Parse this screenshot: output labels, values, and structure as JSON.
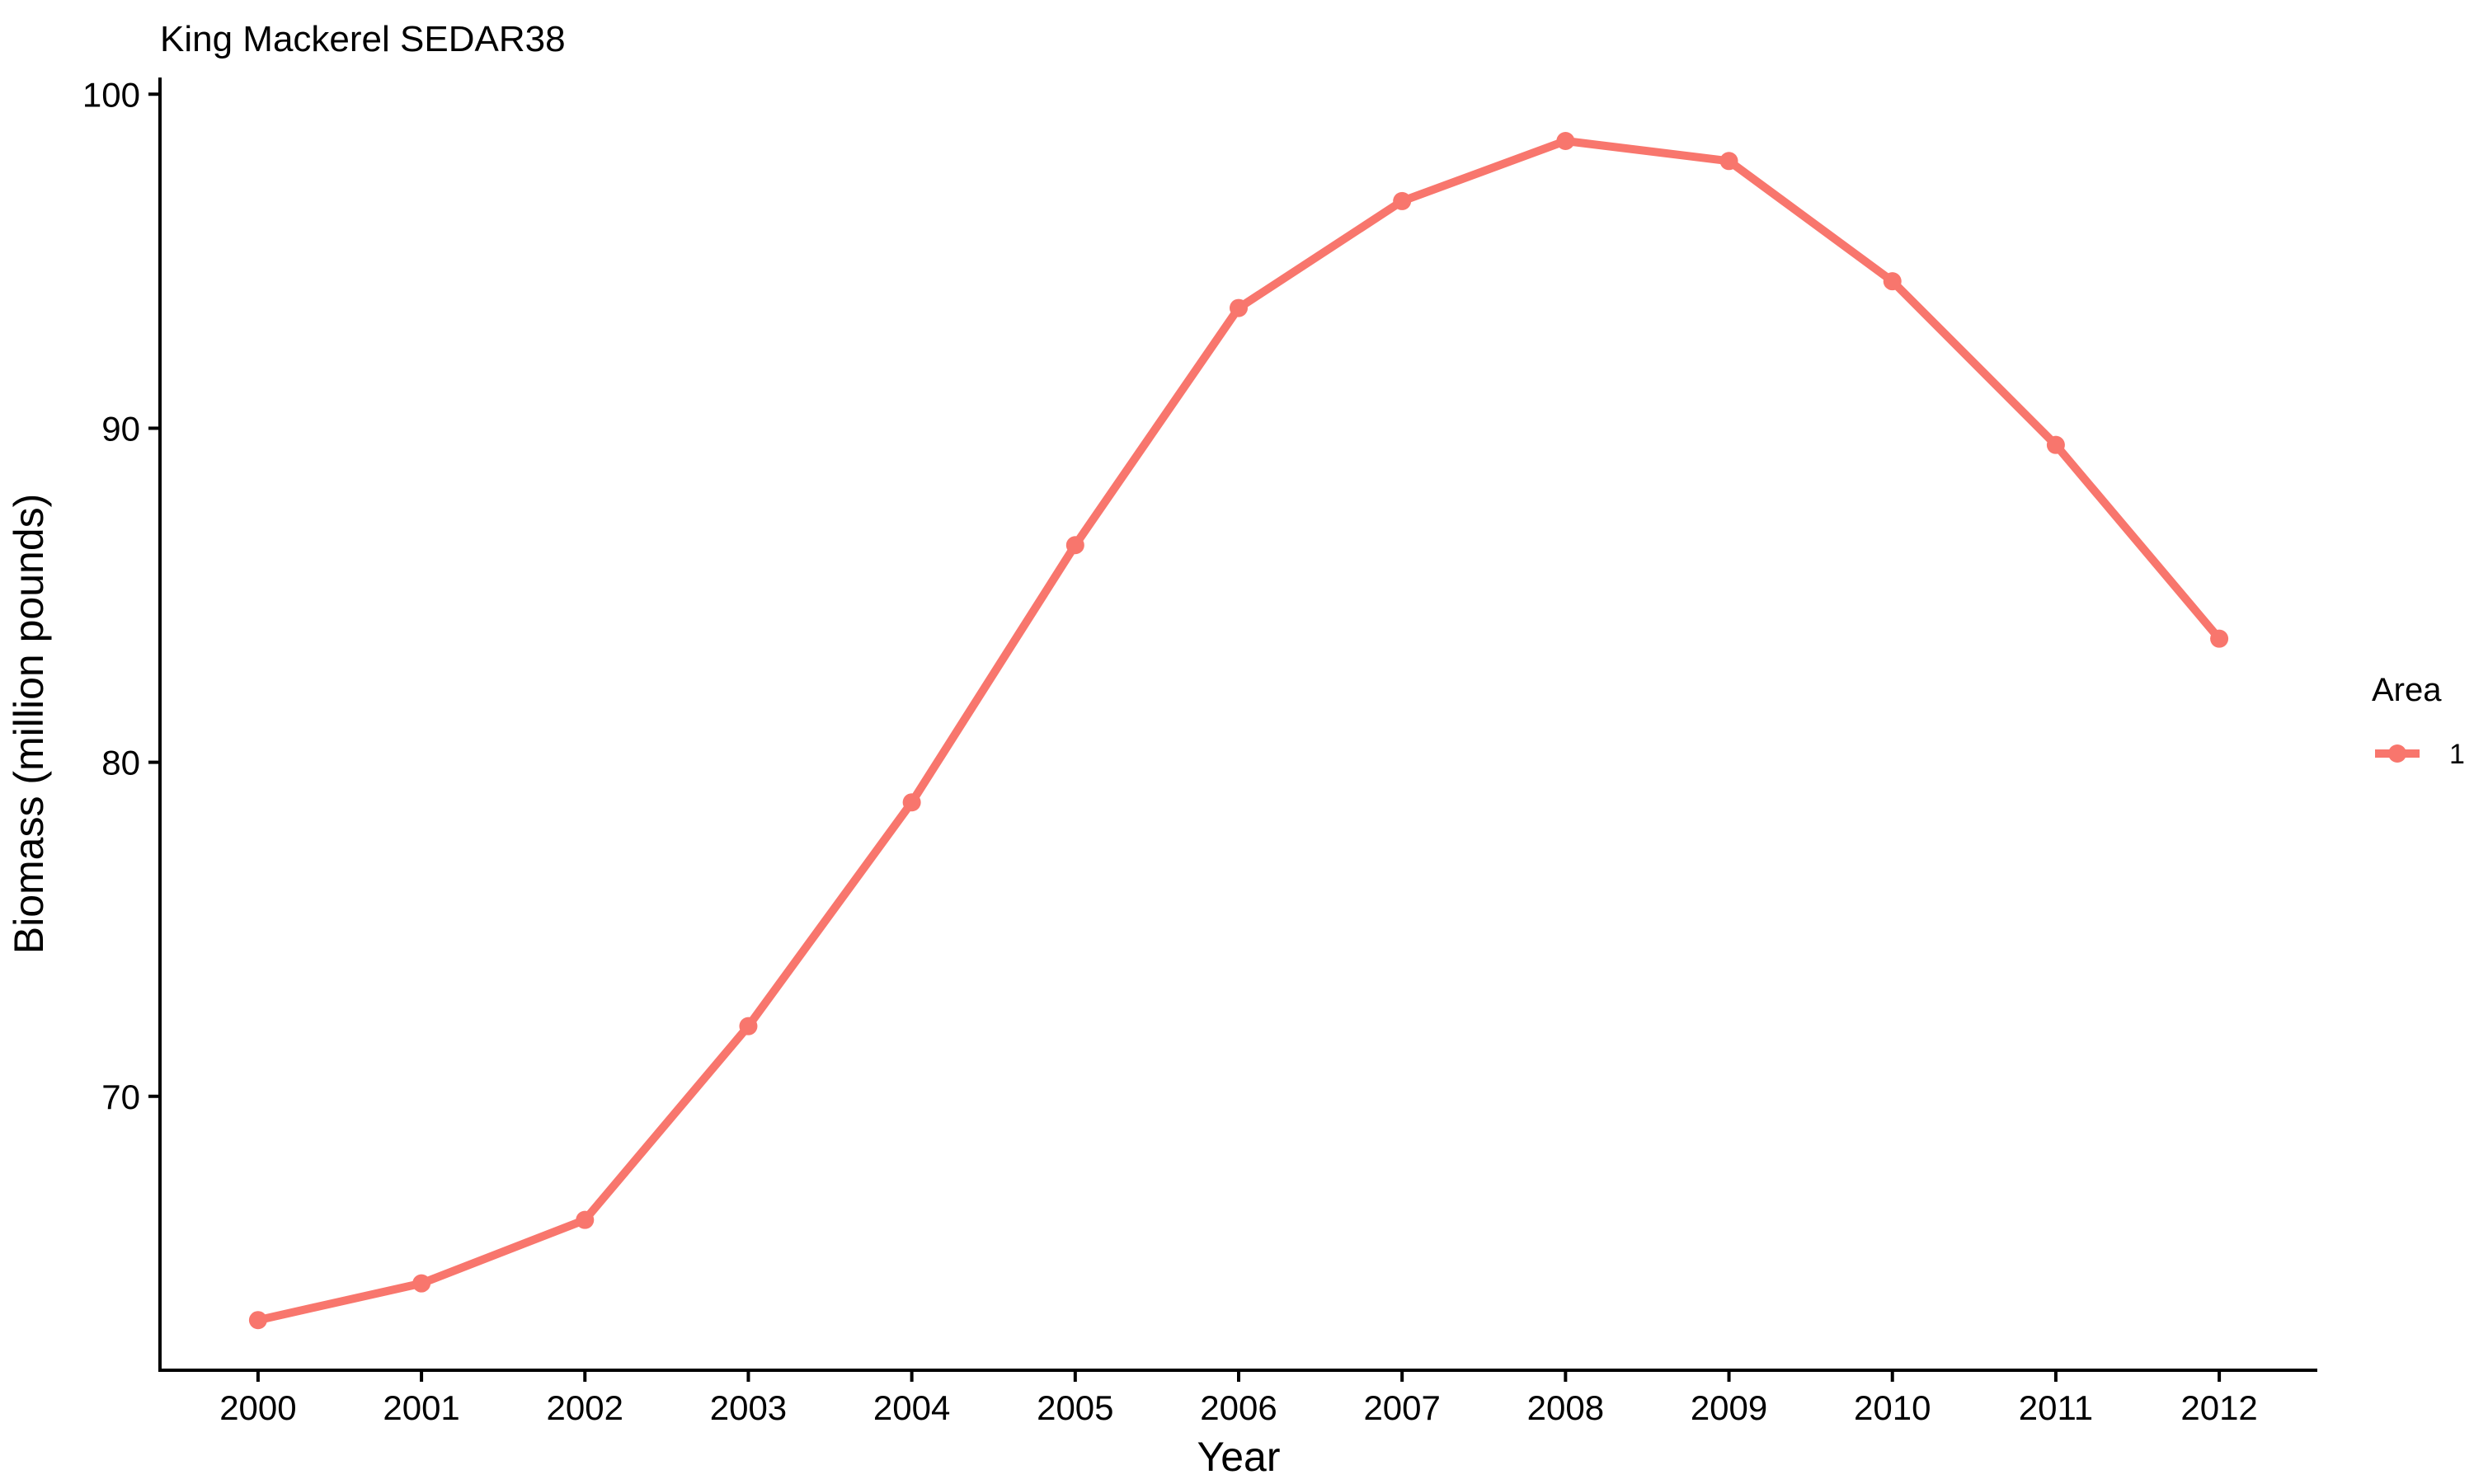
{
  "chart_data": {
    "type": "line",
    "title": "King Mackerel SEDAR38",
    "xlabel": "Year",
    "ylabel": "Biomass (million pounds)",
    "x": [
      2000,
      2001,
      2002,
      2003,
      2004,
      2005,
      2006,
      2007,
      2008,
      2009,
      2010,
      2011,
      2012
    ],
    "x_tick_labels": [
      "2000",
      "2001",
      "2002",
      "2003",
      "2004",
      "2005",
      "2006",
      "2007",
      "2008",
      "2009",
      "2010",
      "2011",
      "2012"
    ],
    "y_ticks": [
      70,
      80,
      90,
      100
    ],
    "y_tick_labels": [
      "70",
      "80",
      "90",
      "100"
    ],
    "ylim": [
      61.8,
      100.5
    ],
    "xlim": [
      1999.4,
      2012.6
    ],
    "grid": false,
    "legend": {
      "title": "Area",
      "placement": "right",
      "entries": [
        "1"
      ]
    },
    "series": [
      {
        "name": "1",
        "color": "#F8766D",
        "values": [
          63.3,
          64.4,
          66.3,
          72.1,
          78.8,
          86.5,
          93.6,
          96.8,
          98.6,
          98.0,
          94.4,
          89.5,
          83.7
        ]
      }
    ]
  }
}
